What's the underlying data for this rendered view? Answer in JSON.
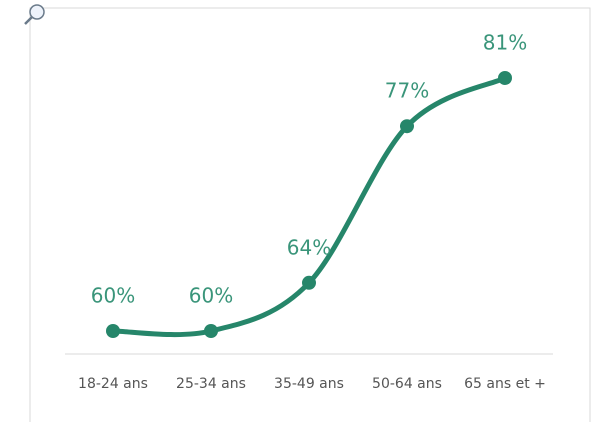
{
  "chart_data": {
    "type": "line",
    "categories": [
      "18-24 ans",
      "25-34 ans",
      "35-49 ans",
      "50-64 ans",
      "65 ans et +"
    ],
    "series": [
      {
        "color": "#26866a",
        "values": [
          60,
          60,
          64,
          77,
          81
        ],
        "value_labels": [
          "60%",
          "60%",
          "64%",
          "77%",
          "81%"
        ]
      }
    ]
  }
}
